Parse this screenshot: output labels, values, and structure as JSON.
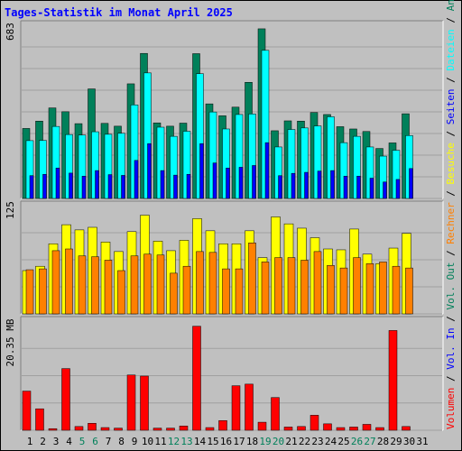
{
  "title": "Tages-Statistik im Monat April 2025",
  "chart_data": [
    {
      "type": "bar",
      "ylabel_top": "683",
      "ylim": [
        0,
        683
      ],
      "x": [
        "1",
        "2",
        "3",
        "4",
        "5",
        "6",
        "7",
        "8",
        "9",
        "10",
        "11",
        "12",
        "13",
        "14",
        "15",
        "16",
        "17",
        "18",
        "19",
        "20",
        "21",
        "22",
        "23",
        "24",
        "25",
        "26",
        "27",
        "28",
        "29",
        "30",
        "31"
      ],
      "weekend_days": [
        "5",
        "6",
        "12",
        "13",
        "19",
        "20",
        "26",
        "27"
      ],
      "series": [
        {
          "name": "Anfragen",
          "color": "#00805a",
          "values": [
            276,
            305,
            357,
            342,
            295,
            432,
            296,
            285,
            452,
            572,
            298,
            285,
            297,
            571,
            373,
            326,
            360,
            458,
            669,
            267,
            306,
            305,
            339,
            331,
            283,
            274,
            264,
            197,
            219,
            334,
            0
          ]
        },
        {
          "name": "Dateien",
          "color": "#00ffff",
          "values": [
            228,
            229,
            284,
            252,
            250,
            263,
            253,
            257,
            369,
            495,
            281,
            245,
            265,
            492,
            341,
            274,
            331,
            333,
            584,
            203,
            272,
            278,
            286,
            322,
            220,
            245,
            203,
            167,
            190,
            248,
            0
          ]
        },
        {
          "name": "Seiten",
          "color": "#0000ff",
          "values": [
            90,
            95,
            120,
            100,
            88,
            110,
            94,
            91,
            150,
            216,
            110,
            92,
            95,
            216,
            140,
            120,
            123,
            130,
            220,
            90,
            99,
            103,
            108,
            110,
            88,
            88,
            80,
            65,
            75,
            118,
            0
          ]
        }
      ],
      "right_labels": [
        "Anfragen",
        "Dateien",
        "Seiten"
      ]
    },
    {
      "type": "bar",
      "ylabel_top": "125",
      "ylim": [
        0,
        125
      ],
      "x": [
        "1",
        "2",
        "3",
        "4",
        "5",
        "6",
        "7",
        "8",
        "9",
        "10",
        "11",
        "12",
        "13",
        "14",
        "15",
        "16",
        "17",
        "18",
        "19",
        "20",
        "21",
        "22",
        "23",
        "24",
        "25",
        "26",
        "27",
        "28",
        "29",
        "30",
        "31"
      ],
      "series": [
        {
          "name": "Besuche",
          "color": "#ffff00",
          "values": [
            50,
            55,
            81,
            103,
            97,
            100,
            83,
            72,
            95,
            114,
            84,
            73,
            85,
            110,
            96,
            81,
            81,
            96,
            65,
            112,
            104,
            99,
            88,
            75,
            74,
            98,
            69,
            58,
            76,
            93,
            0
          ]
        },
        {
          "name": "Rechner",
          "color": "#ff8000",
          "values": [
            51,
            52,
            73,
            75,
            67,
            66,
            62,
            50,
            67,
            69,
            68,
            47,
            55,
            72,
            71,
            52,
            52,
            82,
            60,
            65,
            65,
            62,
            72,
            56,
            53,
            65,
            58,
            60,
            55,
            53,
            0
          ]
        }
      ],
      "right_labels": [
        "Besuche",
        "Rechner"
      ]
    },
    {
      "type": "bar",
      "ylabel_top": "20.35 MB",
      "ylim": [
        0,
        20.35
      ],
      "x": [
        "1",
        "2",
        "3",
        "4",
        "5",
        "6",
        "7",
        "8",
        "9",
        "10",
        "11",
        "12",
        "13",
        "14",
        "15",
        "16",
        "17",
        "18",
        "19",
        "20",
        "21",
        "22",
        "23",
        "24",
        "25",
        "26",
        "27",
        "28",
        "29",
        "30",
        "31"
      ],
      "series": [
        {
          "name": "Volumen",
          "color": "#ff0000",
          "values": [
            7.3,
            4.0,
            0.3,
            11.5,
            0.7,
            1.3,
            0.5,
            0.4,
            10.3,
            10.1,
            0.4,
            0.4,
            0.8,
            19.4,
            0.5,
            1.8,
            8.3,
            8.6,
            1.5,
            6.1,
            0.6,
            0.7,
            2.8,
            1.2,
            0.5,
            0.6,
            1.1,
            0.5,
            18.6,
            0.7,
            0
          ]
        },
        {
          "name": "Vol. In",
          "color": "#0000ff",
          "values": [
            0,
            0,
            0,
            0,
            0,
            0,
            0,
            0,
            0,
            0,
            0,
            0,
            0,
            0,
            0,
            0,
            0,
            0,
            0,
            0,
            0,
            0,
            0,
            0,
            0,
            0,
            0,
            0,
            0,
            0,
            0
          ]
        },
        {
          "name": "Vol. Out",
          "color": "#00805a",
          "values": [
            0,
            0,
            0,
            0,
            0,
            0,
            0,
            0,
            0,
            0,
            0,
            0,
            0,
            0,
            0,
            0,
            0,
            0,
            0,
            0,
            0,
            0,
            0,
            0,
            0,
            0,
            0,
            0,
            0,
            0,
            0
          ]
        }
      ],
      "right_labels": [
        "Volumen",
        "Vol. In",
        "Vol. Out"
      ]
    }
  ],
  "right_axis_separators": [
    "/"
  ],
  "colors": {
    "frame_bg": "#c0c0c0",
    "title": "#0000ff",
    "weekday_label": "#000000",
    "weekend_label": "#00805a"
  }
}
